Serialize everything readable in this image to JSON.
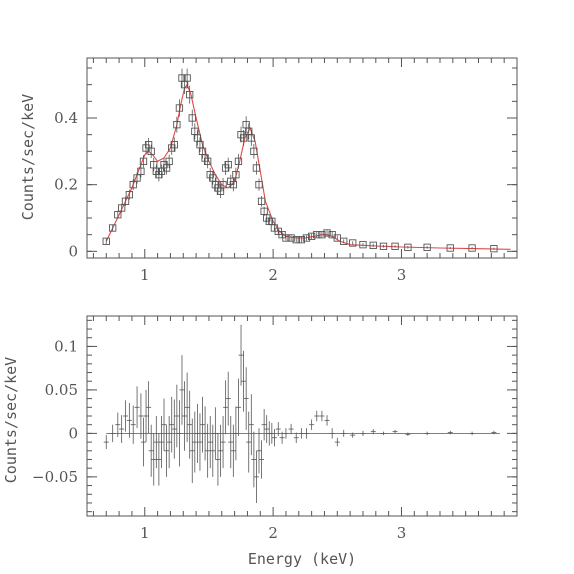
{
  "chart_data": [
    {
      "type": "scatter",
      "ylabel": "Counts/sec/keV",
      "xlim": [
        0.55,
        3.9
      ],
      "ylim": [
        -0.02,
        0.58
      ],
      "xticks": [
        1,
        2,
        3
      ],
      "xtick_labels": [
        "1",
        "2",
        "3"
      ],
      "yticks": [
        0,
        0.2,
        0.4
      ],
      "ytick_labels": [
        "0",
        "0.2",
        "0.4"
      ],
      "series": [
        {
          "style": "data-squares",
          "x": [
            0.7,
            0.75,
            0.79,
            0.82,
            0.85,
            0.88,
            0.91,
            0.94,
            0.97,
            0.99,
            1.01,
            1.03,
            1.05,
            1.07,
            1.09,
            1.11,
            1.13,
            1.15,
            1.17,
            1.19,
            1.21,
            1.23,
            1.25,
            1.27,
            1.29,
            1.31,
            1.33,
            1.35,
            1.37,
            1.39,
            1.41,
            1.43,
            1.45,
            1.47,
            1.49,
            1.51,
            1.53,
            1.55,
            1.57,
            1.59,
            1.61,
            1.63,
            1.65,
            1.67,
            1.69,
            1.71,
            1.73,
            1.75,
            1.77,
            1.79,
            1.81,
            1.83,
            1.85,
            1.87,
            1.89,
            1.91,
            1.93,
            1.95,
            1.97,
            1.99,
            2.01,
            2.04,
            2.07,
            2.1,
            2.14,
            2.18,
            2.22,
            2.26,
            2.3,
            2.34,
            2.38,
            2.42,
            2.46,
            2.5,
            2.55,
            2.62,
            2.7,
            2.78,
            2.86,
            2.95,
            3.05,
            3.2,
            3.38,
            3.55,
            3.72
          ],
          "y": [
            0.03,
            0.07,
            0.11,
            0.13,
            0.15,
            0.17,
            0.2,
            0.22,
            0.24,
            0.27,
            0.31,
            0.32,
            0.3,
            0.26,
            0.24,
            0.23,
            0.24,
            0.26,
            0.25,
            0.27,
            0.31,
            0.32,
            0.38,
            0.43,
            0.52,
            0.5,
            0.52,
            0.47,
            0.4,
            0.36,
            0.34,
            0.32,
            0.3,
            0.28,
            0.27,
            0.23,
            0.22,
            0.2,
            0.19,
            0.18,
            0.2,
            0.25,
            0.26,
            0.21,
            0.2,
            0.23,
            0.27,
            0.35,
            0.34,
            0.38,
            0.36,
            0.34,
            0.3,
            0.25,
            0.2,
            0.15,
            0.12,
            0.1,
            0.09,
            0.09,
            0.07,
            0.06,
            0.05,
            0.04,
            0.04,
            0.035,
            0.035,
            0.04,
            0.045,
            0.05,
            0.05,
            0.055,
            0.05,
            0.04,
            0.03,
            0.025,
            0.02,
            0.018,
            0.015,
            0.015,
            0.012,
            0.012,
            0.01,
            0.01,
            0.008
          ],
          "yerr": [
            0.008,
            0.01,
            0.012,
            0.013,
            0.014,
            0.015,
            0.016,
            0.017,
            0.018,
            0.019,
            0.02,
            0.02,
            0.02,
            0.02,
            0.02,
            0.02,
            0.02,
            0.02,
            0.02,
            0.02,
            0.021,
            0.022,
            0.024,
            0.026,
            0.028,
            0.028,
            0.028,
            0.027,
            0.025,
            0.024,
            0.023,
            0.022,
            0.022,
            0.021,
            0.021,
            0.02,
            0.02,
            0.02,
            0.02,
            0.02,
            0.02,
            0.021,
            0.021,
            0.02,
            0.02,
            0.021,
            0.022,
            0.024,
            0.024,
            0.025,
            0.024,
            0.024,
            0.022,
            0.02,
            0.018,
            0.016,
            0.014,
            0.013,
            0.012,
            0.012,
            0.011,
            0.01,
            0.009,
            0.008,
            0.008,
            0.008,
            0.008,
            0.008,
            0.008,
            0.008,
            0.008,
            0.008,
            0.008,
            0.007,
            0.006,
            0.005,
            0.005,
            0.005,
            0.004,
            0.004,
            0.004,
            0.004,
            0.003,
            0.003,
            0.003
          ]
        },
        {
          "style": "model-line",
          "color": "#e04848",
          "x": [
            0.7,
            0.75,
            0.8,
            0.85,
            0.9,
            0.95,
            1.0,
            1.03,
            1.06,
            1.1,
            1.15,
            1.2,
            1.25,
            1.28,
            1.31,
            1.33,
            1.36,
            1.4,
            1.45,
            1.5,
            1.55,
            1.6,
            1.65,
            1.7,
            1.74,
            1.78,
            1.82,
            1.86,
            1.9,
            1.94,
            2.0,
            2.05,
            2.1,
            2.18,
            2.25,
            2.32,
            2.38,
            2.42,
            2.46,
            2.52,
            2.6,
            2.8,
            3.0,
            3.3,
            3.6,
            3.85
          ],
          "y": [
            0.03,
            0.07,
            0.11,
            0.15,
            0.19,
            0.24,
            0.29,
            0.3,
            0.29,
            0.27,
            0.28,
            0.31,
            0.38,
            0.44,
            0.49,
            0.5,
            0.47,
            0.4,
            0.32,
            0.27,
            0.23,
            0.2,
            0.19,
            0.21,
            0.27,
            0.34,
            0.37,
            0.33,
            0.24,
            0.15,
            0.09,
            0.06,
            0.045,
            0.04,
            0.04,
            0.045,
            0.05,
            0.05,
            0.045,
            0.03,
            0.02,
            0.016,
            0.013,
            0.01,
            0.008,
            0.006
          ]
        }
      ]
    },
    {
      "type": "scatter",
      "xlabel": "Energy (keV)",
      "ylabel": "Counts/sec/keV",
      "xlim": [
        0.55,
        3.9
      ],
      "ylim": [
        -0.095,
        0.135
      ],
      "xticks": [
        1,
        2,
        3
      ],
      "xtick_labels": [
        "1",
        "2",
        "3"
      ],
      "yticks": [
        -0.05,
        0,
        0.05,
        0.1
      ],
      "ytick_labels": [
        "−0.05",
        "0",
        "0.05",
        "0.1"
      ],
      "series": [
        {
          "style": "residual-crosses",
          "x": [
            0.7,
            0.75,
            0.79,
            0.82,
            0.85,
            0.88,
            0.91,
            0.94,
            0.97,
            0.99,
            1.01,
            1.03,
            1.05,
            1.07,
            1.09,
            1.11,
            1.13,
            1.15,
            1.17,
            1.19,
            1.21,
            1.23,
            1.25,
            1.27,
            1.29,
            1.31,
            1.33,
            1.35,
            1.37,
            1.39,
            1.41,
            1.43,
            1.45,
            1.47,
            1.49,
            1.51,
            1.53,
            1.55,
            1.57,
            1.59,
            1.61,
            1.63,
            1.65,
            1.67,
            1.69,
            1.71,
            1.73,
            1.75,
            1.77,
            1.79,
            1.81,
            1.83,
            1.85,
            1.87,
            1.89,
            1.91,
            1.93,
            1.95,
            1.97,
            1.99,
            2.01,
            2.04,
            2.07,
            2.1,
            2.14,
            2.18,
            2.22,
            2.26,
            2.3,
            2.34,
            2.38,
            2.42,
            2.46,
            2.5,
            2.55,
            2.62,
            2.7,
            2.78,
            2.86,
            2.95,
            3.05,
            3.2,
            3.38,
            3.55,
            3.72
          ],
          "y": [
            -0.01,
            0.0,
            0.01,
            0.005,
            0.02,
            0.015,
            0.01,
            0.03,
            0.02,
            -0.01,
            0.02,
            0.03,
            -0.02,
            -0.03,
            -0.01,
            -0.03,
            -0.01,
            0.01,
            -0.02,
            -0.01,
            0.01,
            0.005,
            0.02,
            0.0,
            0.05,
            0.02,
            0.03,
            0.01,
            -0.02,
            -0.01,
            0.0,
            -0.01,
            0.01,
            0.0,
            -0.02,
            -0.01,
            -0.02,
            0.0,
            -0.03,
            -0.02,
            -0.01,
            0.03,
            0.04,
            -0.01,
            -0.02,
            0.0,
            0.03,
            0.09,
            0.06,
            0.04,
            -0.01,
            0.01,
            -0.03,
            -0.05,
            -0.02,
            -0.03,
            0.01,
            0.005,
            0.0,
            0.0,
            -0.005,
            0.005,
            -0.005,
            0.0,
            0.005,
            -0.005,
            0.0,
            0.0,
            0.01,
            0.02,
            0.02,
            0.015,
            0.0,
            -0.01,
            0.0,
            -0.002,
            0.0,
            0.002,
            0.0,
            0.002,
            -0.001,
            0.0,
            0.001,
            0.0,
            0.001
          ],
          "yerr": [
            0.008,
            0.01,
            0.014,
            0.016,
            0.018,
            0.02,
            0.022,
            0.024,
            0.026,
            0.028,
            0.03,
            0.03,
            0.03,
            0.03,
            0.03,
            0.03,
            0.03,
            0.03,
            0.03,
            0.03,
            0.032,
            0.034,
            0.036,
            0.038,
            0.04,
            0.04,
            0.04,
            0.039,
            0.037,
            0.035,
            0.034,
            0.033,
            0.032,
            0.031,
            0.031,
            0.03,
            0.03,
            0.03,
            0.03,
            0.03,
            0.03,
            0.031,
            0.031,
            0.03,
            0.03,
            0.031,
            0.033,
            0.035,
            0.035,
            0.036,
            0.035,
            0.035,
            0.032,
            0.03,
            0.026,
            0.022,
            0.018,
            0.016,
            0.014,
            0.012,
            0.01,
            0.008,
            0.007,
            0.006,
            0.006,
            0.006,
            0.006,
            0.006,
            0.006,
            0.006,
            0.006,
            0.006,
            0.006,
            0.005,
            0.004,
            0.003,
            0.003,
            0.003,
            0.002,
            0.002,
            0.002,
            0.002,
            0.002,
            0.002,
            0.002
          ]
        }
      ]
    }
  ]
}
